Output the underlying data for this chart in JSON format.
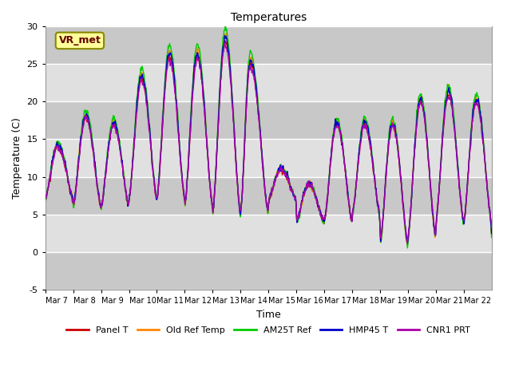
{
  "title": "Temperatures",
  "xlabel": "Time",
  "ylabel": "Temperature (C)",
  "ylim": [
    -5,
    30
  ],
  "plot_bg_color": "#dcdcdc",
  "white_band_color": "#f0f0f0",
  "series": [
    "Panel T",
    "Old Ref Temp",
    "AM25T Ref",
    "HMP45 T",
    "CNR1 PRT"
  ],
  "colors": [
    "#cc0000",
    "#ff8800",
    "#00cc00",
    "#0000cc",
    "#aa00aa"
  ],
  "annotation_text": "VR_met",
  "x_tick_labels": [
    "Mar 7",
    "Mar 8",
    "Mar 9",
    "Mar 10",
    "Mar 11",
    "Mar 12",
    "Mar 13",
    "Mar 14",
    "Mar 15",
    "Mar 16",
    "Mar 17",
    "Mar 18",
    "Mar 19",
    "Mar 20",
    "Mar 21",
    "Mar 22"
  ],
  "n_days": 16,
  "pts_per_day": 144,
  "day_mins": [
    7,
    6,
    6,
    7,
    7,
    6,
    5,
    5,
    7,
    4,
    4,
    5,
    1,
    2,
    4,
    4
  ],
  "day_maxs": [
    14,
    18,
    17,
    23,
    26,
    26,
    28,
    25,
    11,
    9,
    17,
    17,
    17,
    20,
    21,
    20
  ],
  "day_peak_pos": [
    0.45,
    0.45,
    0.45,
    0.45,
    0.45,
    0.45,
    0.45,
    0.35,
    0.45,
    0.45,
    0.45,
    0.45,
    0.45,
    0.45,
    0.45,
    0.45
  ]
}
